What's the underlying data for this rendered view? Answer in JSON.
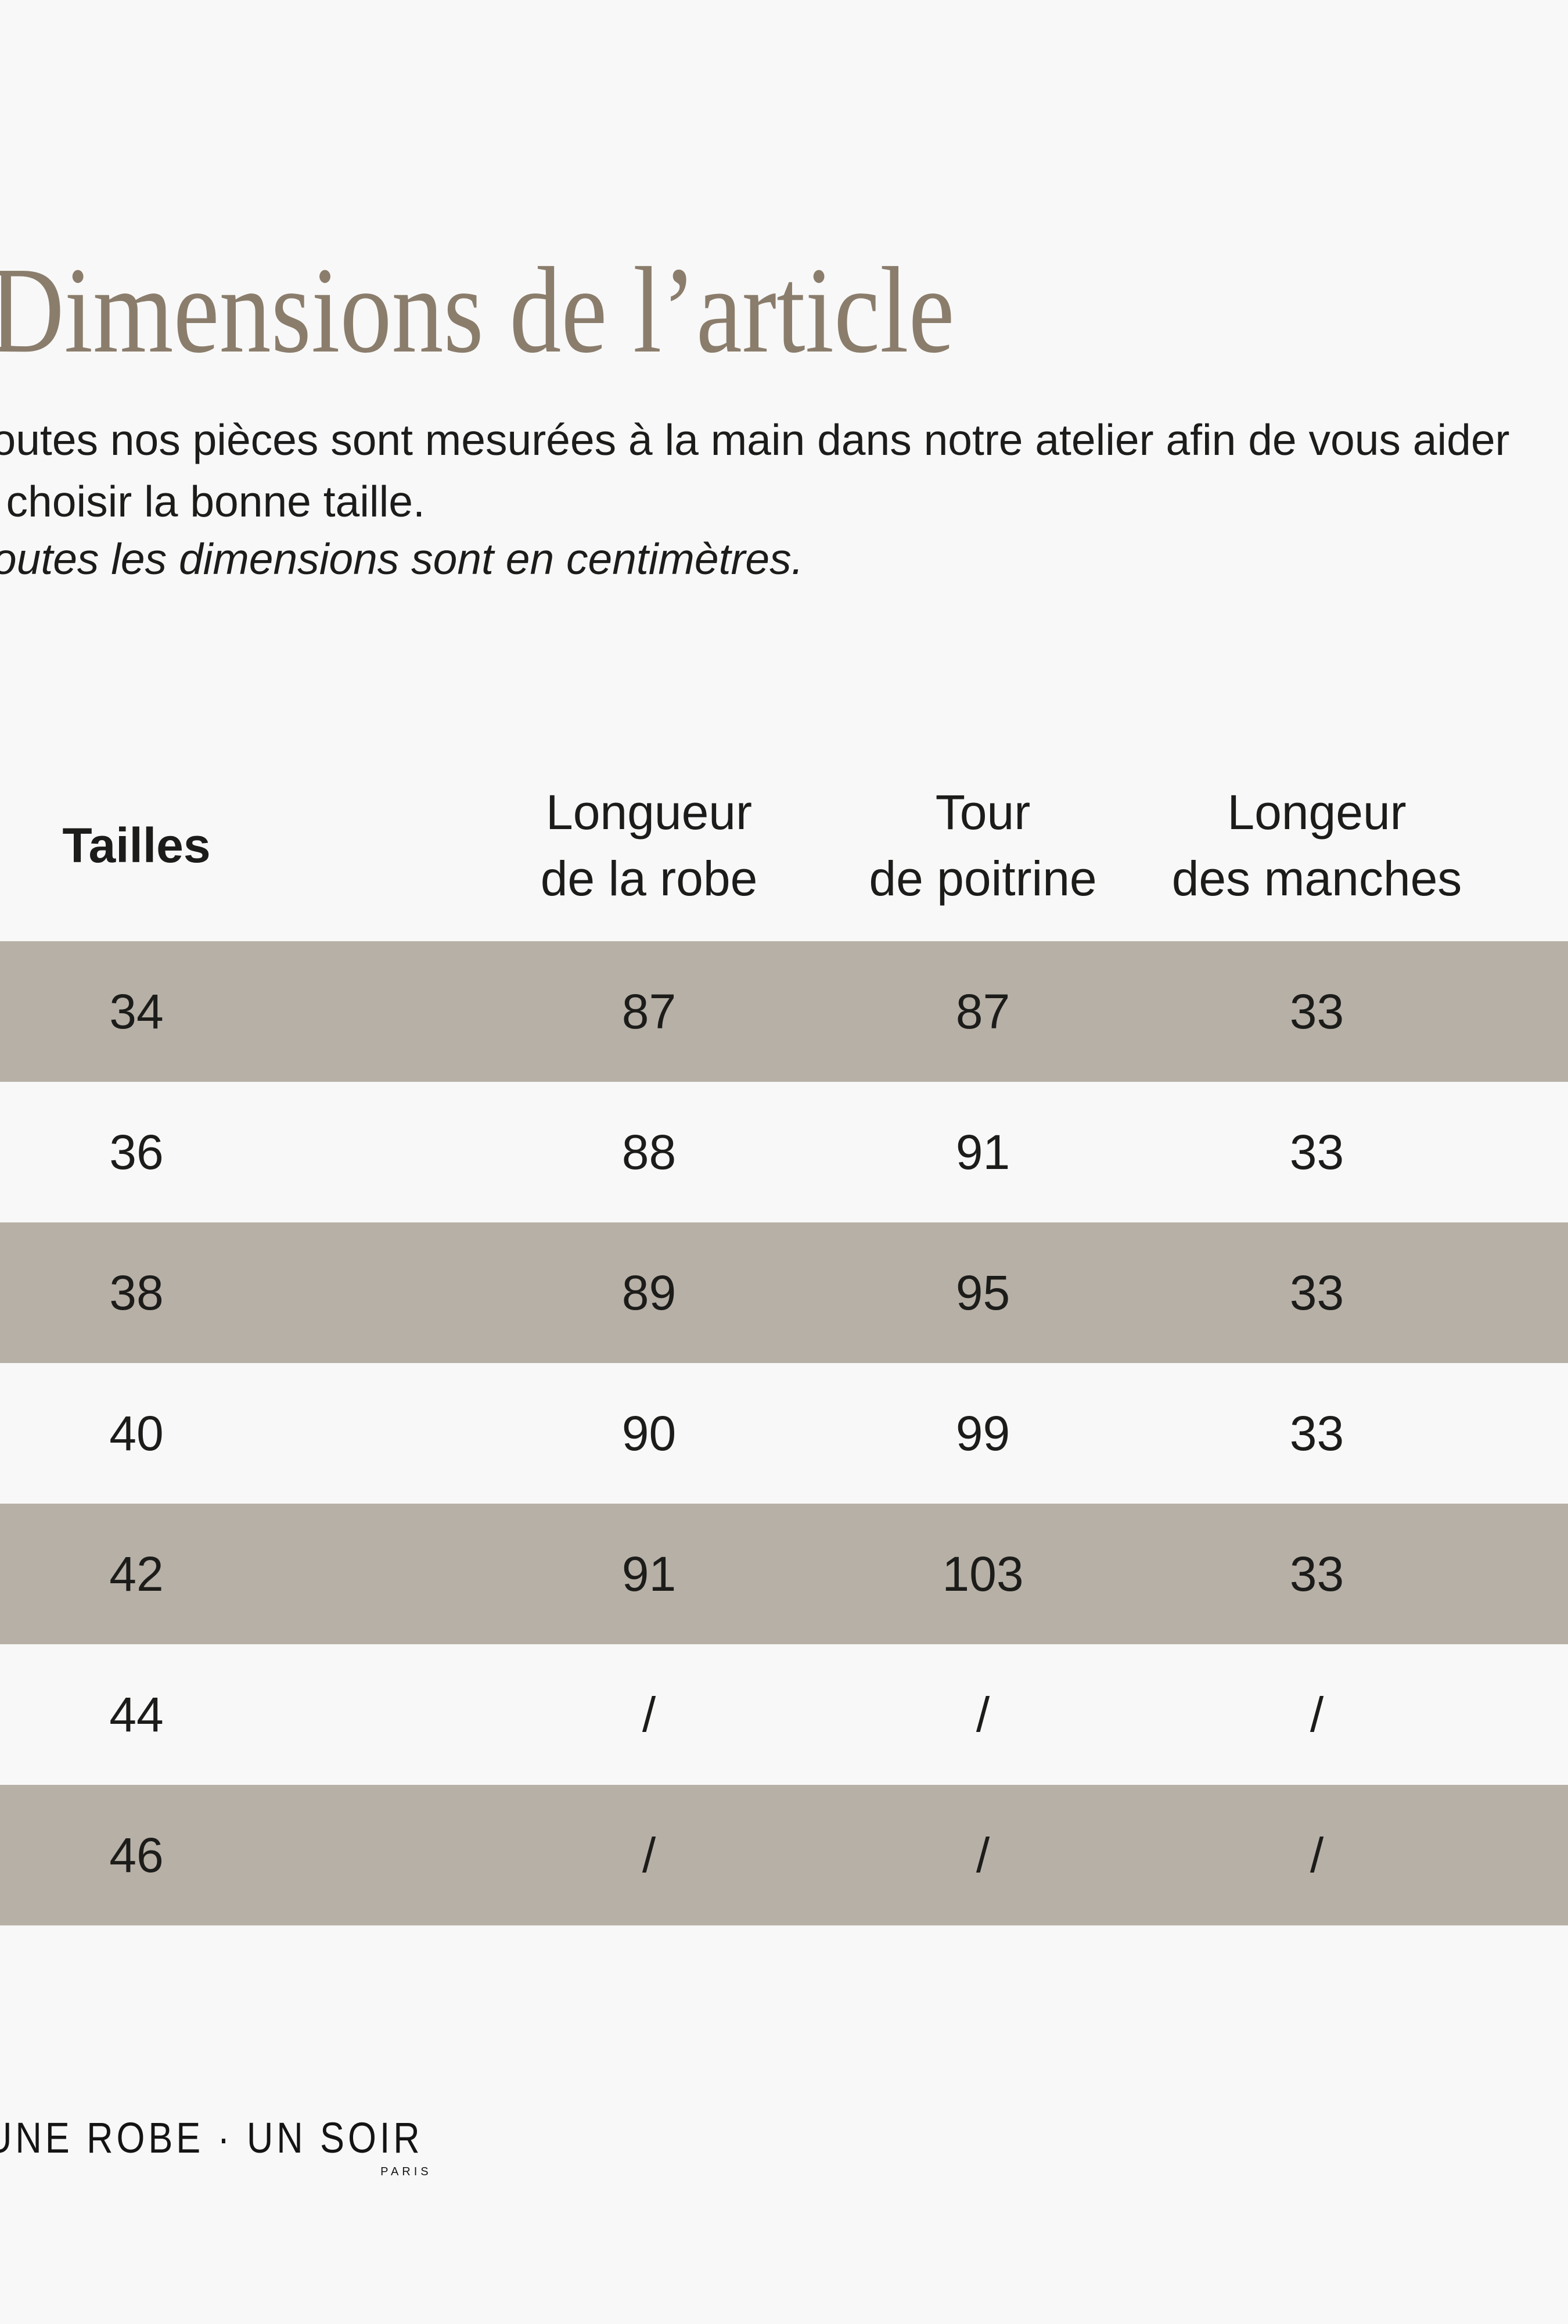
{
  "page": {
    "title": "Dimensions de l’article",
    "intro_line1": "Toutes nos pièces sont mesurées à la main dans notre atelier afin de vous aider",
    "intro_line2": "à choisir la bonne taille.",
    "units_note": "Toutes les dimensions sont en centimètres.",
    "colors": {
      "background": "#f8f8f8",
      "title": "#8b7d6c",
      "row_highlight": "#b7b0a6",
      "text": "#1c1c1a"
    }
  },
  "table": {
    "headers": [
      {
        "line1": "Tailles",
        "line2": ""
      },
      {
        "line1": "Longueur",
        "line2": "de la robe"
      },
      {
        "line1": "Tour",
        "line2": "de poitrine"
      },
      {
        "line1": "Longeur",
        "line2": "des manches"
      }
    ],
    "rows": [
      {
        "taille": "34",
        "longueur_robe": "87",
        "tour_poitrine": "87",
        "longueur_manches": "33"
      },
      {
        "taille": "36",
        "longueur_robe": "88",
        "tour_poitrine": "91",
        "longueur_manches": "33"
      },
      {
        "taille": "38",
        "longueur_robe": "89",
        "tour_poitrine": "95",
        "longueur_manches": "33"
      },
      {
        "taille": "40",
        "longueur_robe": "90",
        "tour_poitrine": "99",
        "longueur_manches": "33"
      },
      {
        "taille": "42",
        "longueur_robe": "91",
        "tour_poitrine": "103",
        "longueur_manches": "33"
      },
      {
        "taille": "44",
        "longueur_robe": "/",
        "tour_poitrine": "/",
        "longueur_manches": "/"
      },
      {
        "taille": "46",
        "longueur_robe": "/",
        "tour_poitrine": "/",
        "longueur_manches": "/"
      }
    ]
  },
  "footer": {
    "brand": "UNE ROBE · UN SOIR",
    "city": "PARIS"
  }
}
